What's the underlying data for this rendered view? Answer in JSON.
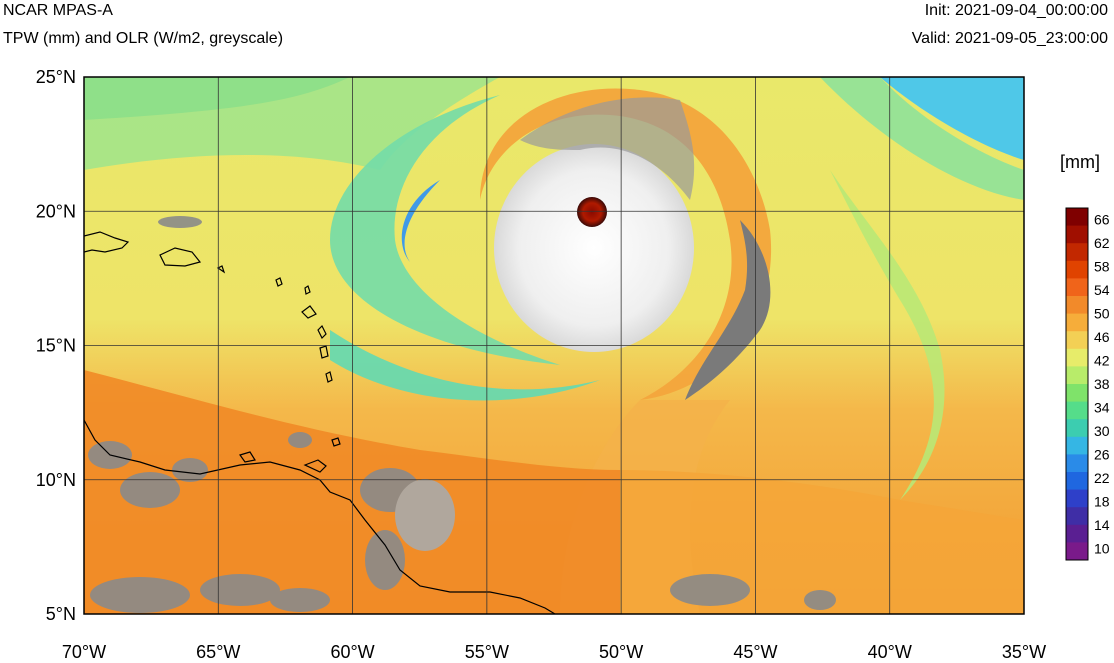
{
  "header": {
    "model": "NCAR MPAS-A",
    "field": "TPW (mm) and OLR (W/m2, greyscale)",
    "init": "Init: 2021-09-04_00:00:00",
    "valid": "Valid: 2021-09-05_23:00:00"
  },
  "map": {
    "lon_labels": [
      "70°W",
      "65°W",
      "60°W",
      "55°W",
      "50°W",
      "45°W",
      "40°W",
      "35°W"
    ],
    "lat_labels": [
      "25°N",
      "20°N",
      "15°N",
      "10°N",
      "5°N"
    ],
    "lon_range": [
      -70,
      -35
    ],
    "lat_range": [
      5,
      25
    ],
    "grid": true
  },
  "colorbar": {
    "units": "[mm]",
    "labels": [
      "66",
      "62",
      "58",
      "54",
      "50",
      "46",
      "42",
      "38",
      "34",
      "30",
      "26",
      "22",
      "18",
      "14",
      "10"
    ],
    "colors": [
      "#7f0000",
      "#a00f00",
      "#c22800",
      "#e04300",
      "#f0641a",
      "#f28a2a",
      "#f6ad3a",
      "#f3d055",
      "#e7ec6a",
      "#b8ec6a",
      "#7fe36a",
      "#55dd8a",
      "#3ccdb0",
      "#35b6e4",
      "#2a8be8",
      "#1f67e0",
      "#2e40c9",
      "#3f2ea6",
      "#5a1f92",
      "#7a1a8a"
    ]
  }
}
